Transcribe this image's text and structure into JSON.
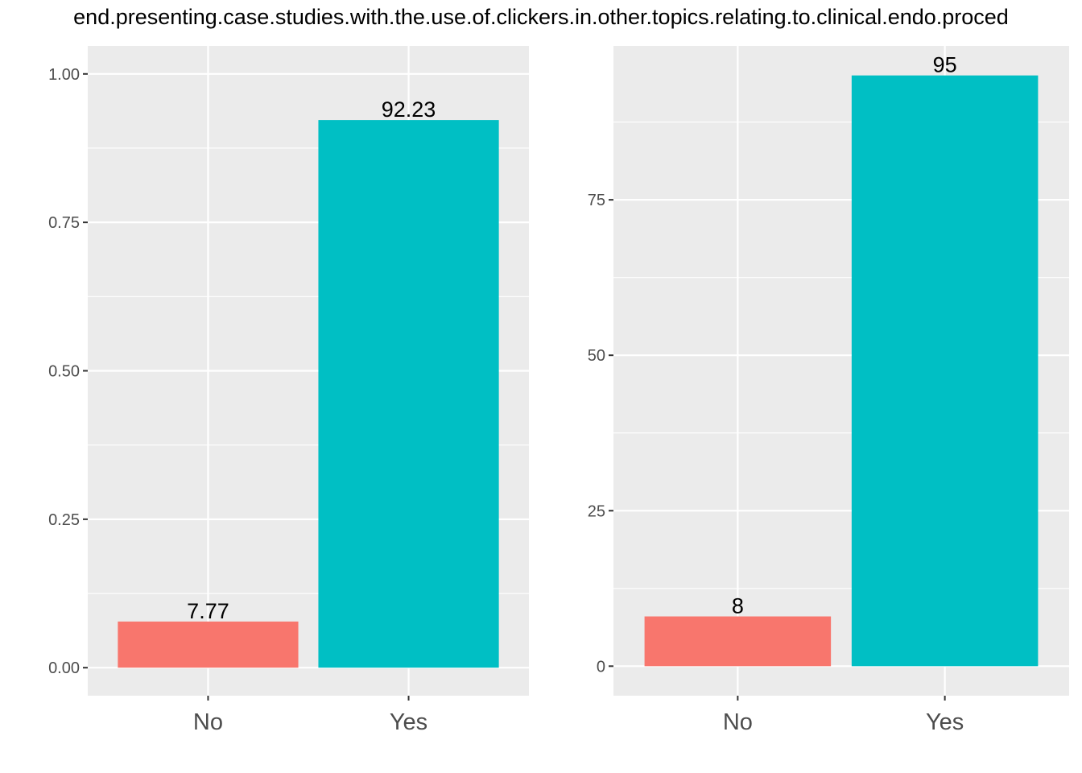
{
  "title": "end.presenting.case.studies.with.the.use.of.clickers.in.other.topics.relating.to.clinical.endo.proced",
  "colors": {
    "No": "#F8766D",
    "Yes": "#00BFC4",
    "panel_bg": "#EBEBEB",
    "grid": "#FFFFFF"
  },
  "chart_data": [
    {
      "type": "bar",
      "categories": [
        "No",
        "Yes"
      ],
      "values": [
        0.0777,
        0.9223
      ],
      "data_labels": [
        "7.77",
        "92.23"
      ],
      "ylim": [
        -0.0472,
        1.0472
      ],
      "yticks": [
        0.0,
        0.25,
        0.5,
        0.75,
        1.0
      ],
      "ytick_labels": [
        "0.00",
        "0.25",
        "0.50",
        "0.75",
        "1.00"
      ],
      "grid": true,
      "legend": "none"
    },
    {
      "type": "bar",
      "categories": [
        "No",
        "Yes"
      ],
      "values": [
        8,
        95
      ],
      "data_labels": [
        "8",
        "95"
      ],
      "ylim": [
        -4.75,
        99.75
      ],
      "yticks": [
        0,
        25,
        50,
        75
      ],
      "ytick_labels": [
        "0",
        "25",
        "50",
        "75"
      ],
      "grid": true,
      "legend": "none"
    }
  ]
}
